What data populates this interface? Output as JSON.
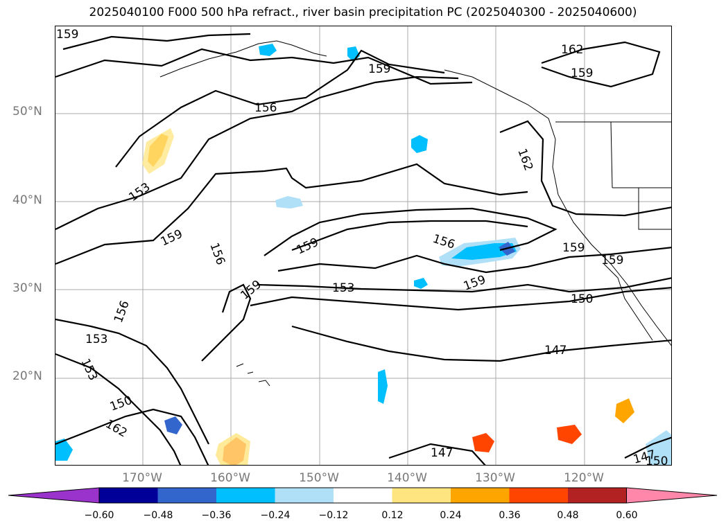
{
  "title": "2025040100 F000 500 hPa refract., river basin precipitation PC (2025040300 - 2025040600)",
  "map": {
    "lat_labels": [
      "50°N",
      "40°N",
      "30°N",
      "20°N"
    ],
    "lon_labels": [
      "170°W",
      "160°W",
      "150°W",
      "140°W",
      "130°W",
      "120°W"
    ],
    "contour_labels": [
      "159",
      "162",
      "159",
      "159",
      "156",
      "162",
      "153",
      "159",
      "156",
      "159",
      "156",
      "159",
      "153",
      "159",
      "159",
      "159",
      "150",
      "156",
      "153",
      "147",
      "153",
      "150",
      "162",
      "147",
      "147",
      "150"
    ],
    "grid_color": "#aaaaaa",
    "contour_color": "#000000"
  },
  "colorbar": {
    "colors": [
      "#9933cc",
      "#000099",
      "#3366cc",
      "#00bfff",
      "#b0e0f8",
      "#ffffff",
      "#ffe580",
      "#ffa500",
      "#ff4500",
      "#b22222",
      "#ff88aa"
    ],
    "ticks": [
      "−0.60",
      "−0.48",
      "−0.36",
      "−0.24",
      "−0.12",
      "0.12",
      "0.24",
      "0.36",
      "0.48",
      "0.60"
    ]
  }
}
